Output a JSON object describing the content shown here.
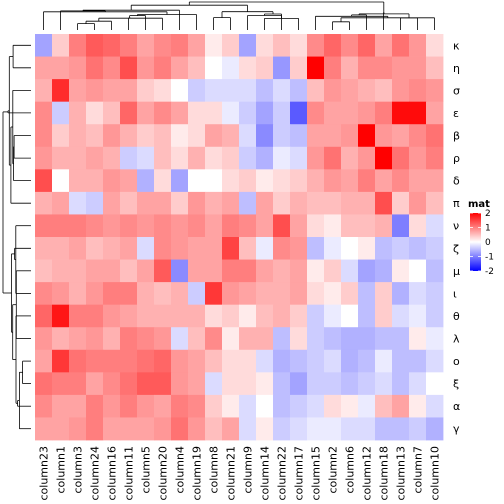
{
  "legend": {
    "title": "mat",
    "ticks": [
      2,
      1,
      0,
      -1,
      -2
    ],
    "tick_labels": [
      "2",
      "1",
      "0",
      "-1",
      "-2"
    ]
  },
  "colors": {
    "high": "#ff0000",
    "mid": "#ffffff",
    "low": "#0000ff",
    "dendrogram": "#000000"
  },
  "chart_data": {
    "type": "heatmap",
    "title": "",
    "xlabel": "",
    "ylabel": "",
    "color_range": [
      -2,
      2
    ],
    "x": [
      "column23",
      "column1",
      "column3",
      "column24",
      "column16",
      "column11",
      "column5",
      "column20",
      "column4",
      "column19",
      "column8",
      "column21",
      "column9",
      "column14",
      "column22",
      "column17",
      "column15",
      "column2",
      "column6",
      "column12",
      "column18",
      "column13",
      "column7",
      "column10"
    ],
    "y": [
      "κ",
      "η",
      "σ",
      "ε",
      "β",
      "ρ",
      "δ",
      "π",
      "ν",
      "ζ",
      "μ",
      "ι",
      "θ",
      "λ",
      "ο",
      "ξ",
      "α",
      "γ"
    ],
    "values": [
      [
        -0.6,
        0.3,
        0.9,
        1.2,
        1.1,
        0.9,
        0.6,
        0.8,
        0.9,
        0.6,
        0.1,
        0.3,
        -0.6,
        0.2,
        0.4,
        0.2,
        0.8,
        1.1,
        0.8,
        1.1,
        0.6,
        1.0,
        0.7,
        0.2
      ],
      [
        0.6,
        0.6,
        0.7,
        1.0,
        0.8,
        1.3,
        0.7,
        0.9,
        0.6,
        0.4,
        0.0,
        -0.1,
        0.2,
        0.3,
        -0.7,
        0.3,
        2.0,
        0.9,
        0.5,
        0.8,
        0.8,
        0.7,
        0.7,
        0.4
      ],
      [
        0.5,
        1.6,
        0.6,
        0.7,
        0.6,
        0.6,
        0.3,
        0.2,
        0.0,
        -0.3,
        -0.2,
        -0.2,
        -0.2,
        -0.4,
        -0.2,
        -0.4,
        0.4,
        0.7,
        0.6,
        0.5,
        0.4,
        0.7,
        0.8,
        0.7
      ],
      [
        0.8,
        -0.3,
        0.5,
        0.2,
        0.4,
        1.1,
        0.6,
        0.8,
        0.6,
        0.2,
        0.2,
        -0.1,
        -0.3,
        -0.6,
        -0.3,
        -1.2,
        0.8,
        0.6,
        0.6,
        0.7,
        0.9,
        1.9,
        1.9,
        0.6
      ],
      [
        0.8,
        0.3,
        0.5,
        0.4,
        0.7,
        0.5,
        0.3,
        0.4,
        0.1,
        0.2,
        0.6,
        0.5,
        -0.2,
        -0.8,
        -0.3,
        -0.4,
        0.6,
        0.6,
        0.7,
        2.0,
        0.7,
        0.6,
        0.8,
        1.0
      ],
      [
        0.7,
        0.5,
        0.5,
        0.6,
        0.5,
        -0.3,
        -0.2,
        0.4,
        0.2,
        0.5,
        0.2,
        0.3,
        -0.3,
        -0.5,
        -0.1,
        -0.2,
        0.7,
        1.0,
        0.5,
        0.7,
        2.0,
        1.0,
        0.7,
        0.9
      ],
      [
        1.3,
        0.0,
        0.5,
        0.5,
        0.7,
        0.6,
        -0.5,
        0.2,
        -0.6,
        0.0,
        0.0,
        0.2,
        0.3,
        0.1,
        0.2,
        0.3,
        0.5,
        0.7,
        0.6,
        0.9,
        0.6,
        0.8,
        0.6,
        0.6
      ],
      [
        0.5,
        0.6,
        -0.2,
        -0.3,
        0.6,
        0.4,
        0.6,
        0.6,
        0.3,
        0.7,
        0.5,
        0.6,
        -0.4,
        0.6,
        0.3,
        0.5,
        0.4,
        0.4,
        0.5,
        0.5,
        1.3,
        0.3,
        0.7,
        0.4
      ],
      [
        0.9,
        0.9,
        0.9,
        0.8,
        0.7,
        0.8,
        0.7,
        0.8,
        0.7,
        0.8,
        0.6,
        0.9,
        0.8,
        0.6,
        1.3,
        0.6,
        0.2,
        0.1,
        0.4,
        0.4,
        0.5,
        -0.9,
        0.2,
        -0.2
      ],
      [
        0.5,
        0.5,
        0.6,
        0.4,
        0.5,
        0.6,
        -0.2,
        0.8,
        0.7,
        0.6,
        0.6,
        1.4,
        0.4,
        -0.1,
        0.8,
        0.7,
        -0.4,
        -0.1,
        0.0,
        0.1,
        -0.4,
        -0.3,
        -0.4,
        -0.3
      ],
      [
        0.4,
        0.5,
        0.5,
        0.6,
        0.6,
        0.4,
        0.6,
        1.2,
        -0.8,
        0.6,
        0.6,
        0.9,
        0.9,
        0.6,
        0.5,
        0.6,
        0.1,
        0.3,
        -0.2,
        -0.6,
        -0.5,
        0.1,
        0.0,
        -0.4
      ],
      [
        0.8,
        0.7,
        0.5,
        0.7,
        0.9,
        0.9,
        0.5,
        0.4,
        0.5,
        -0.3,
        1.5,
        0.7,
        0.6,
        0.5,
        0.5,
        0.6,
        0.2,
        0.1,
        0.3,
        -0.4,
        0.3,
        -0.5,
        -0.2,
        -0.3
      ],
      [
        1.1,
        1.8,
        0.9,
        0.9,
        0.7,
        0.6,
        0.5,
        0.5,
        0.5,
        0.5,
        0.2,
        0.3,
        0.1,
        0.4,
        0.5,
        0.3,
        -0.3,
        -0.1,
        0.0,
        -0.4,
        0.3,
        -0.2,
        -0.1,
        -0.3
      ],
      [
        0.7,
        0.5,
        0.6,
        0.7,
        0.5,
        0.9,
        0.8,
        0.7,
        -0.2,
        0.4,
        0.8,
        0.1,
        0.5,
        0.5,
        -0.4,
        0.2,
        -0.3,
        -0.4,
        -0.5,
        -0.5,
        -0.4,
        -0.4,
        0.1,
        -0.1
      ],
      [
        0.6,
        1.5,
        1.0,
        0.9,
        0.9,
        0.9,
        1.0,
        1.1,
        0.7,
        0.6,
        0.4,
        0.2,
        0.2,
        -0.2,
        -0.5,
        -0.4,
        -0.3,
        -0.2,
        -0.5,
        -0.4,
        -0.1,
        -0.4,
        -0.4,
        -0.2
      ],
      [
        1.0,
        0.9,
        0.9,
        0.6,
        0.8,
        1.0,
        1.2,
        1.2,
        0.7,
        0.6,
        -0.2,
        0.2,
        0.2,
        0.1,
        -0.4,
        -0.6,
        -0.3,
        -0.3,
        -0.4,
        -0.3,
        -0.2,
        -0.4,
        -0.2,
        0.0
      ],
      [
        0.8,
        0.6,
        0.6,
        0.9,
        0.7,
        0.9,
        0.7,
        0.6,
        0.9,
        0.8,
        0.3,
        0.1,
        -0.2,
        0.0,
        -0.4,
        -0.3,
        -0.2,
        0.2,
        0.1,
        -0.1,
        0.4,
        0.6,
        0.1,
        -0.2
      ],
      [
        0.6,
        0.6,
        0.7,
        0.9,
        0.6,
        0.6,
        0.6,
        0.7,
        1.0,
        0.7,
        0.4,
        0.6,
        -0.2,
        0.1,
        -0.3,
        -0.2,
        -0.1,
        -0.1,
        -0.2,
        -0.2,
        -0.4,
        -0.4,
        -0.3,
        -0.5
      ]
    ]
  }
}
